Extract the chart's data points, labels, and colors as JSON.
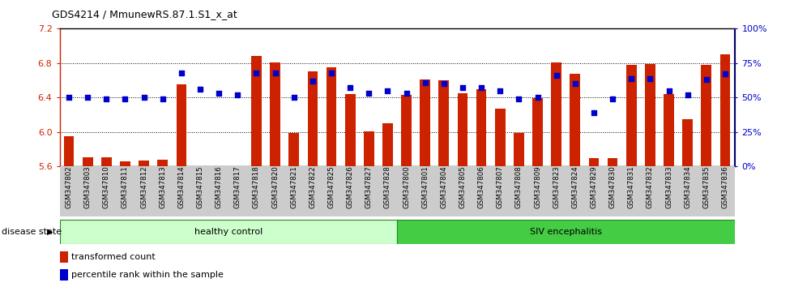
{
  "title": "GDS4214 / MmunewRS.87.1.S1_x_at",
  "samples": [
    "GSM347802",
    "GSM347803",
    "GSM347810",
    "GSM347811",
    "GSM347812",
    "GSM347813",
    "GSM347814",
    "GSM347815",
    "GSM347816",
    "GSM347817",
    "GSM347818",
    "GSM347820",
    "GSM347821",
    "GSM347822",
    "GSM347825",
    "GSM347826",
    "GSM347827",
    "GSM347828",
    "GSM347800",
    "GSM347801",
    "GSM347804",
    "GSM347805",
    "GSM347806",
    "GSM347807",
    "GSM347808",
    "GSM347809",
    "GSM347823",
    "GSM347824",
    "GSM347829",
    "GSM347830",
    "GSM347831",
    "GSM347832",
    "GSM347833",
    "GSM347834",
    "GSM347835",
    "GSM347836"
  ],
  "red_values": [
    5.95,
    5.71,
    5.71,
    5.66,
    5.67,
    5.68,
    6.55,
    5.57,
    5.58,
    5.56,
    6.88,
    6.81,
    5.99,
    6.7,
    6.75,
    6.44,
    6.01,
    6.1,
    6.43,
    6.61,
    6.6,
    6.45,
    6.5,
    6.27,
    5.99,
    6.39,
    6.81,
    6.68,
    5.7,
    5.7,
    6.78,
    6.79,
    6.44,
    6.15,
    6.78,
    6.9
  ],
  "blue_values": [
    50,
    50,
    49,
    49,
    50,
    49,
    68,
    56,
    53,
    52,
    68,
    68,
    50,
    62,
    68,
    57,
    53,
    55,
    53,
    61,
    60,
    57,
    57,
    55,
    49,
    50,
    66,
    60,
    39,
    49,
    64,
    64,
    55,
    52,
    63,
    67
  ],
  "group_boundary": 18,
  "group1_label": "healthy control",
  "group2_label": "SIV encephalitis",
  "disease_state_label": "disease state",
  "legend1": "transformed count",
  "legend2": "percentile rank within the sample",
  "ylim_left": [
    5.6,
    7.2
  ],
  "ylim_right": [
    0,
    100
  ],
  "yticks_left": [
    5.6,
    6.0,
    6.4,
    6.8,
    7.2
  ],
  "yticks_right": [
    0,
    25,
    50,
    75,
    100
  ],
  "bar_color": "#cc2200",
  "dot_color": "#0000cc",
  "group1_color": "#ccffcc",
  "group2_color": "#44cc44",
  "group_bar_color": "#228822",
  "xtick_bg_color": "#cccccc"
}
